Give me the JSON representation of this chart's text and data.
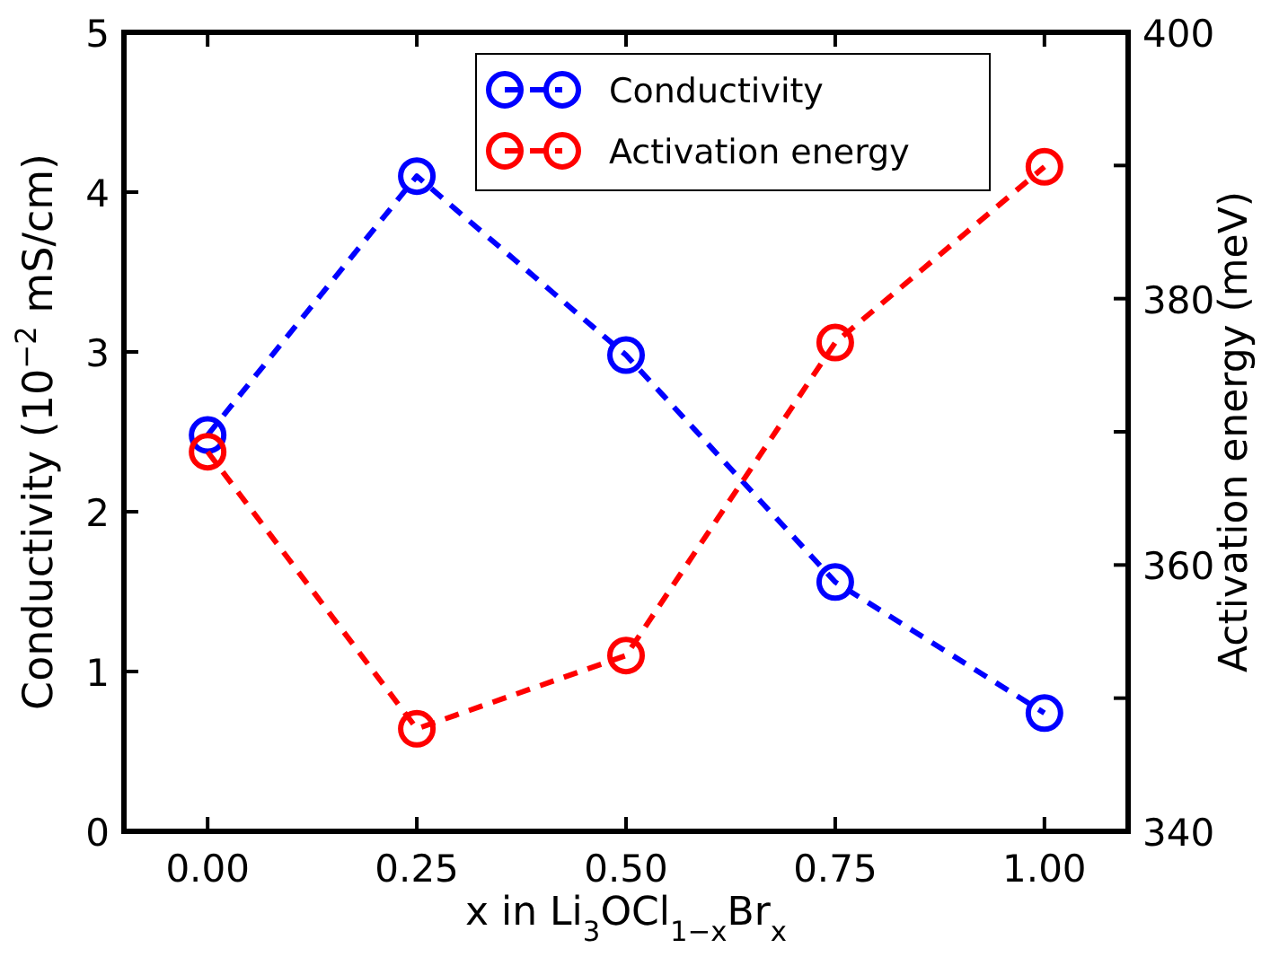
{
  "chart_data": {
    "type": "line",
    "xlabel": "x in Li$_{3}$OCl$_{1−x}$Br$_{x}$",
    "ylabel": "Conductivity (10$^{−2}$ mS/cm)",
    "y2label": "Activation energy (meV)",
    "x": [
      0,
      0.25,
      0.5,
      0.75,
      1.0
    ],
    "series": [
      {
        "name": "Conductivity",
        "color": "#0000ff",
        "values": [
          2.48,
          4.1,
          2.98,
          1.56,
          0.74
        ]
      },
      {
        "name": "Activation energy",
        "color": "#ff0000",
        "axis": "y2",
        "values": [
          368.5,
          347.7,
          353.2,
          376.7,
          389.9
        ]
      }
    ],
    "xlim": [
      -0.1,
      1.1
    ],
    "xticks": [
      {
        "value": 0,
        "label": "0.00"
      },
      {
        "value": 0.25,
        "label": "0.25"
      },
      {
        "value": 0.5,
        "label": "0.50"
      },
      {
        "value": 0.75,
        "label": "0.75"
      },
      {
        "value": 1.0,
        "label": "1.00"
      }
    ],
    "ylim": [
      0,
      5
    ],
    "yticks": [
      0,
      1,
      2,
      3,
      4,
      5
    ],
    "y2lim": [
      340,
      400
    ],
    "y2ticks": [
      340,
      {
        "value": 350,
        "label": null
      },
      360,
      {
        "value": 370,
        "label": null
      },
      380,
      {
        "value": 390,
        "label": null
      },
      400
    ],
    "marker": "circle",
    "line_style": "dashed",
    "legend": "top",
    "grid": false
  }
}
